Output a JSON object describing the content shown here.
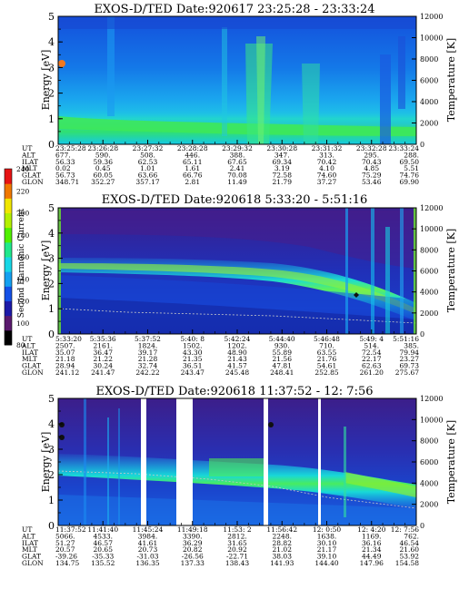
{
  "chart_data": [
    {
      "type": "heatmap",
      "title": "EXOS-D/TED   Date:920617  23:25:28 - 23:33:24",
      "ylabel": "Energy [eV]",
      "y2label": "Temperature [K]",
      "ylim": [
        0,
        5
      ],
      "y2lim": [
        0,
        12000
      ],
      "yticks": [
        "0",
        "1",
        "2",
        "3",
        "4",
        "5"
      ],
      "y2ticks": [
        "0",
        "2000",
        "4000",
        "6000",
        "8000",
        "10000",
        "12000"
      ],
      "row_labels": [
        "UT",
        "ALT",
        "ILAT",
        "MLT",
        "GLAT",
        "GLON"
      ],
      "columns": [
        [
          "23:25:28",
          "677.",
          "56.33",
          "0.02",
          "56.73",
          "348.71"
        ],
        [
          "23:26:28",
          "590.",
          "59.36",
          "0.45",
          "60.05",
          "352.27"
        ],
        [
          "23:27:32",
          "508.",
          "62.53",
          "1.01",
          "63.66",
          "357.17"
        ],
        [
          "23:28:28",
          "446.",
          "65.11",
          "1.61",
          "66.76",
          "2.81"
        ],
        [
          "23:29:32",
          "388.",
          "67.65",
          "2.41",
          "70.08",
          "11.49"
        ],
        [
          "23:30:28",
          "347.",
          "69.34",
          "3.19",
          "72.58",
          "21.79"
        ],
        [
          "23:31:32",
          "313.",
          "70.42",
          "4.10",
          "74.60",
          "37.27"
        ],
        [
          "23:32:28",
          "295.",
          "70.43",
          "4.85",
          "75.29",
          "53.46"
        ],
        [
          "23:33:24",
          "288.",
          "69.50",
          "5.51",
          "74.76",
          "69.90"
        ]
      ]
    },
    {
      "type": "heatmap",
      "title": "EXOS-D/TED   Date:920618   5:33:20 - 5:51:16",
      "ylabel": "Energy [eV]",
      "y2label": "Temperature [K]",
      "ylim": [
        0,
        5
      ],
      "y2lim": [
        0,
        12000
      ],
      "yticks": [
        "0",
        "1",
        "2",
        "3",
        "4",
        "5"
      ],
      "y2ticks": [
        "0",
        "2000",
        "4000",
        "6000",
        "8000",
        "10000",
        "12000"
      ],
      "colorbar": {
        "label": "Second Harmonic Current",
        "range": [
          80,
          240
        ],
        "ticks": [
          "80",
          "100",
          "120",
          "140",
          "160",
          "180",
          "200",
          "220",
          "240"
        ],
        "colors": [
          "#000000",
          "#5a1a6e",
          "#1c1aa8",
          "#1450e6",
          "#14a0f0",
          "#18d7e6",
          "#20e88c",
          "#50f000",
          "#b4f000",
          "#f0e600",
          "#f07800",
          "#e61414"
        ]
      },
      "row_labels": [
        "UT",
        "ALT",
        "ILAT",
        "MLT",
        "GLAT",
        "GLON"
      ],
      "columns": [
        [
          "5:33:20",
          "2507.",
          "35.07",
          "21.18",
          "28.94",
          "241.12"
        ],
        [
          "5:35:36",
          "2161.",
          "36.47",
          "21.22",
          "30.24",
          "241.47"
        ],
        [
          "5:37:52",
          "1824.",
          "39.17",
          "21.28",
          "32.74",
          "242.22"
        ],
        [
          "5:40: 8",
          "1502.",
          "43.30",
          "21.35",
          "36.51",
          "243.47"
        ],
        [
          "5:42:24",
          "1202.",
          "48.90",
          "21.43",
          "41.57",
          "245.48"
        ],
        [
          "5:44:40",
          "930.",
          "55.89",
          "21.56",
          "47.81",
          "248.41"
        ],
        [
          "5:46:48",
          "710.",
          "63.55",
          "21.76",
          "54.61",
          "252.85"
        ],
        [
          "5:49: 4",
          "514.",
          "72.54",
          "22.17",
          "62.63",
          "261.20"
        ],
        [
          "5:51:16",
          "385.",
          "79.94",
          "23.27",
          "69.73",
          "275.67"
        ]
      ]
    },
    {
      "type": "heatmap",
      "title": "EXOS-D/TED   Date:920618  11:37:52 - 12: 7:56",
      "ylabel": "Energy [eV]",
      "y2label": "Temperature [K]",
      "ylim": [
        0,
        5
      ],
      "y2lim": [
        0,
        12000
      ],
      "yticks": [
        "0",
        "1",
        "2",
        "3",
        "4",
        "5"
      ],
      "y2ticks": [
        "0",
        "2000",
        "4000",
        "6000",
        "8000",
        "10000",
        "12000"
      ],
      "row_labels": [
        "UT",
        "ALT",
        "ILAT",
        "MLT",
        "GLAT",
        "GLON"
      ],
      "columns": [
        [
          "11:37:52",
          "5066.",
          "51.27",
          "20.57",
          "-39.26",
          "134.75"
        ],
        [
          "11:41:40",
          "4533.",
          "46.57",
          "20.65",
          "-35.33",
          "135.52"
        ],
        [
          "11:45:24",
          "3984.",
          "41.61",
          "20.73",
          "-31.03",
          "136.35"
        ],
        [
          "11:49:18",
          "3390.",
          "36.29",
          "20.82",
          "-26.56",
          "137.33"
        ],
        [
          "11:53: 2",
          "2812.",
          "31.65",
          "20.92",
          "-22.71",
          "138.43"
        ],
        [
          "11:56:42",
          "2248.",
          "28.82",
          "21.02",
          "38.03",
          "141.93"
        ],
        [
          "12: 0:50",
          "1638.",
          "30.10",
          "21.17",
          "39.10",
          "144.40"
        ],
        [
          "12: 4:20",
          "1169.",
          "36.16",
          "21.34",
          "44.49",
          "147.96"
        ],
        [
          "12: 7:56",
          "762.",
          "46.54",
          "21.60",
          "53.92",
          "154.58"
        ]
      ]
    }
  ]
}
